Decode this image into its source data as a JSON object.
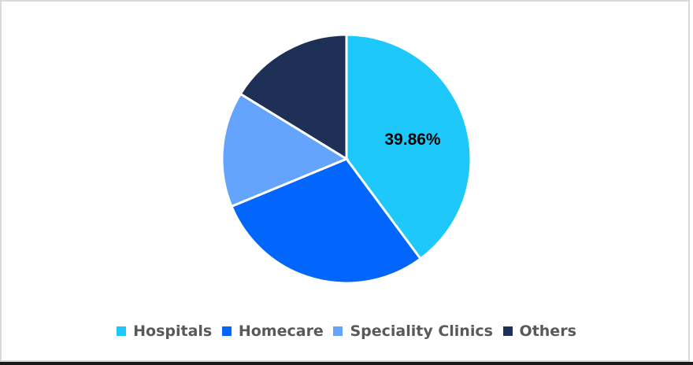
{
  "chart_data": {
    "type": "pie",
    "title": "",
    "categories": [
      "Hospitals",
      "Homecare",
      "Speciality Clinics",
      "Others"
    ],
    "values": [
      39.86,
      28.9,
      15.0,
      16.24
    ],
    "colors": [
      "#1ec8fb",
      "#0366fc",
      "#64a4fc",
      "#1f3057"
    ],
    "data_labels": [
      "39.86%",
      "",
      "",
      ""
    ],
    "start_angle_deg": 0,
    "direction": "clockwise",
    "legend_position": "bottom"
  },
  "legend": {
    "items": [
      {
        "label": "Hospitals",
        "color": "#1ec8fb"
      },
      {
        "label": "Homecare",
        "color": "#0366fc"
      },
      {
        "label": "Speciality Clinics",
        "color": "#64a4fc"
      },
      {
        "label": "Others",
        "color": "#1f3057"
      }
    ]
  },
  "labels": {
    "hospitals_pct": "39.86%"
  }
}
